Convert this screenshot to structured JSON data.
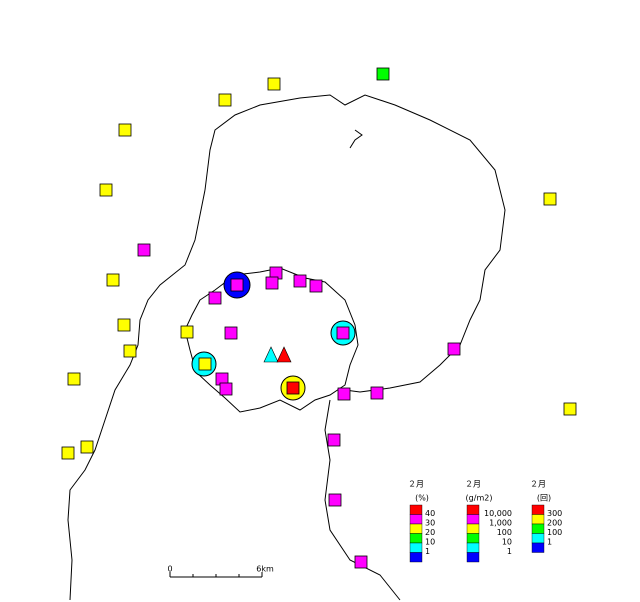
{
  "scale": {
    "start": "0",
    "end": "6km"
  },
  "legends": [
    {
      "title": "２月",
      "unit": "(%)",
      "colors": [
        "#ff0000",
        "#ff00ff",
        "#ffff00",
        "#00ff00",
        "#00ffff",
        "#0000ff"
      ],
      "labels": [
        "40",
        "30",
        "20",
        "10",
        "1"
      ]
    },
    {
      "title": "２月",
      "unit": "(g/m2)",
      "colors": [
        "#ff0000",
        "#ff00ff",
        "#ffff00",
        "#00ff00",
        "#00ffff",
        "#0000ff"
      ],
      "labels": [
        "10,000",
        "1,000",
        "100",
        "10",
        "1"
      ]
    },
    {
      "title": "２月",
      "unit": "(回)",
      "colors": [
        "#ff0000",
        "#ffff00",
        "#00ff00",
        "#00ffff",
        "#0000ff"
      ],
      "labels": [
        "300",
        "200",
        "100",
        "1"
      ]
    }
  ]
}
